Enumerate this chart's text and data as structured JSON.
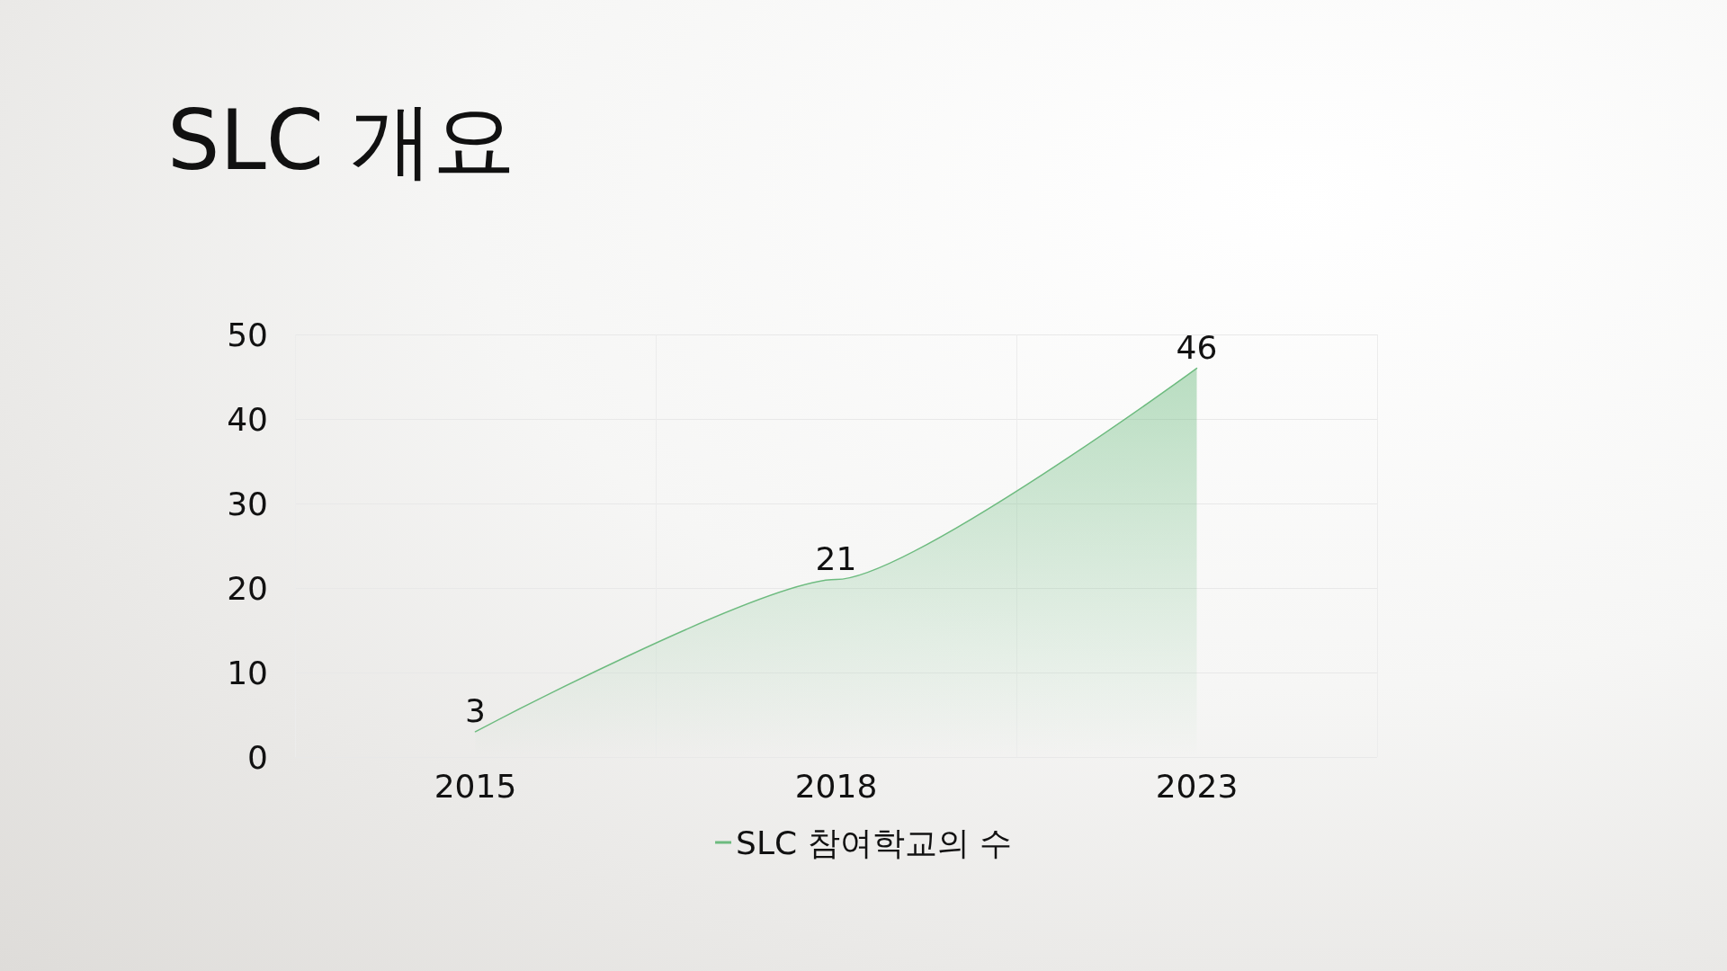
{
  "chart_data": {
    "type": "area",
    "title": "SLC 개요",
    "categories": [
      "2015",
      "2018",
      "2023"
    ],
    "series": [
      {
        "name": "SLC 참여학교의 수",
        "color": "#6dbb7f",
        "values": [
          3,
          21,
          46
        ]
      }
    ],
    "ylim": [
      0,
      50
    ],
    "yticks": [
      0,
      10,
      20,
      30,
      40,
      50
    ],
    "grid": true,
    "legend": "bottom",
    "data_labels": true,
    "marker": "none"
  }
}
